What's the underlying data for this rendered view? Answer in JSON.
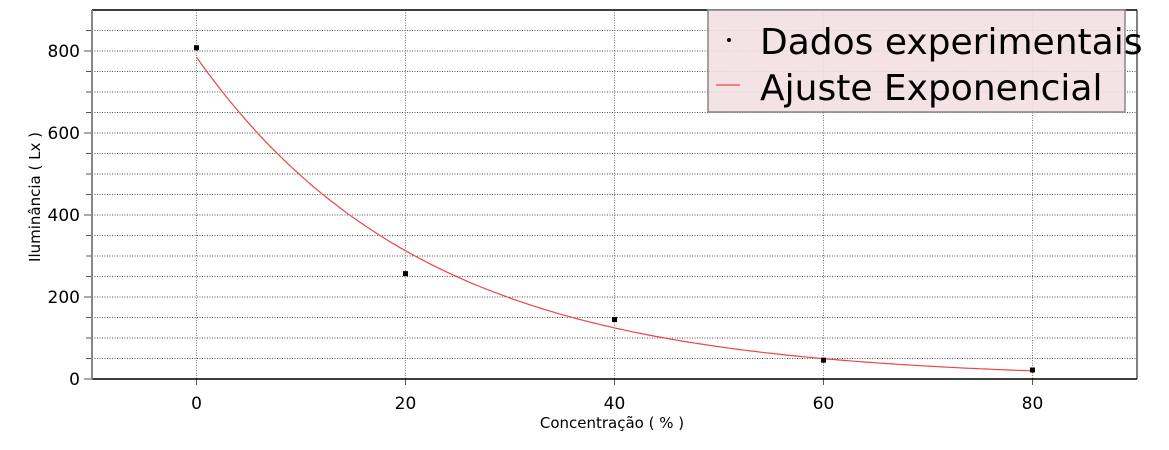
{
  "chart_data": {
    "type": "scatter",
    "title": "",
    "xlabel": "Concentração ( % )",
    "ylabel": "Iluminância ( Lx )",
    "xlim": [
      -10,
      90
    ],
    "ylim": [
      0,
      900
    ],
    "xticks": [
      0,
      20,
      40,
      60,
      80
    ],
    "yticks": [
      0,
      200,
      400,
      600,
      800
    ],
    "y_minor_step": 50,
    "grid": true,
    "legend_position": "top-right",
    "series": [
      {
        "name": "Dados experimentais",
        "kind": "points",
        "color": "#000000",
        "x": [
          0,
          20,
          40,
          60,
          80
        ],
        "y": [
          808,
          257,
          145,
          46,
          22
        ]
      },
      {
        "name": "Ajuste Exponencial",
        "kind": "line",
        "color": "#e8474a",
        "model": "y = 785*exp(-0.046*x)",
        "a": 785,
        "b": -0.046,
        "x_range": [
          0,
          80
        ]
      }
    ],
    "legend_background": "#f2dfe3"
  }
}
